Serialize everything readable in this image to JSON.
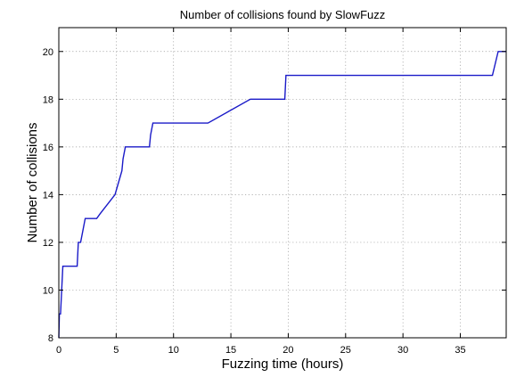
{
  "chart_data": {
    "type": "line",
    "title": "Number of collisions found by SlowFuzz",
    "xlabel": "Fuzzing time (hours)",
    "ylabel": "Number of collisions",
    "xlim": [
      0,
      39
    ],
    "ylim": [
      8,
      21
    ],
    "xticks": [
      0,
      5,
      10,
      15,
      20,
      25,
      30,
      35
    ],
    "yticks": [
      8,
      10,
      12,
      14,
      16,
      18,
      20
    ],
    "grid": true,
    "grid_style": "dotted",
    "legend": "none",
    "series": [
      {
        "color": "#1a1ac8",
        "x": [
          0,
          0.05,
          0.15,
          0.25,
          0.35,
          1.6,
          1.7,
          1.9,
          2.3,
          2.5,
          3.3,
          3.6,
          4.9,
          5.5,
          5.6,
          5.8,
          7.9,
          8.0,
          8.2,
          13.0,
          16.7,
          19.7,
          19.8,
          37.8,
          38.3,
          39.0
        ],
        "y": [
          8.0,
          9.0,
          9.0,
          10.0,
          11.0,
          11.0,
          12.0,
          12.0,
          13.0,
          13.0,
          13.0,
          13.2,
          14.0,
          15.0,
          15.5,
          16.0,
          16.0,
          16.5,
          17.0,
          17.0,
          18.0,
          18.0,
          19.0,
          19.0,
          20.0,
          20.0
        ]
      }
    ]
  }
}
